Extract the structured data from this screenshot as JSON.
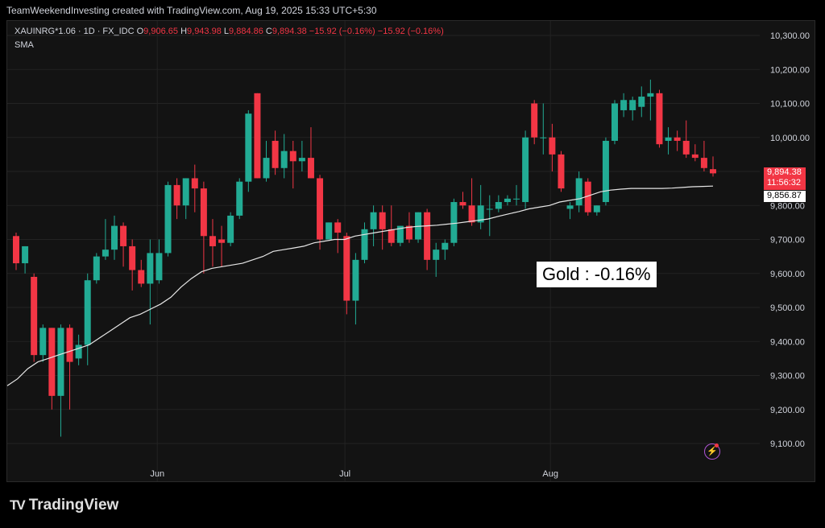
{
  "header": {
    "caption": "TeamWeekendInvesting created with TradingView.com, Aug 19, 2025 15:33 UTC+5:30"
  },
  "legend": {
    "symbol": "XAUINRG*1.06 · 1D · FX_IDC",
    "o_label": "O",
    "o_value": "9,906.65",
    "h_label": "H",
    "h_value": "9,943.98",
    "l_label": "L",
    "l_value": "9,884.86",
    "c_label": "C",
    "c_value": "9,894.38",
    "change": "−15.92 (−0.16%)",
    "change2": "−15.92 (−0.16%)",
    "indicator": "SMA"
  },
  "annotation": {
    "text": "Gold : -0.16%"
  },
  "price_tag": {
    "price": "9,894.38",
    "countdown": "11:56:32"
  },
  "sma_tag": {
    "value": "9,856.87"
  },
  "brand": {
    "logo": "TV",
    "name": "TradingView"
  },
  "colors": {
    "up": "#22ab94",
    "down": "#f23645",
    "sma": "#e6e6e6",
    "grid": "#232323",
    "bg": "#131313"
  },
  "icons": {
    "alert": "lightning-icon"
  },
  "chart_data": {
    "type": "candlestick",
    "title": "",
    "ylim": [
      9050,
      10330
    ],
    "y_ticks": [
      "10,300.00",
      "10,200.00",
      "10,100.00",
      "10,000.00",
      "9,900.00",
      "9,800.00",
      "9,700.00",
      "9,600.00",
      "9,500.00",
      "9,400.00",
      "9,300.00",
      "9,200.00",
      "9,100.00"
    ],
    "y_tick_values": [
      10300,
      10200,
      10100,
      10000,
      9900,
      9800,
      9700,
      9600,
      9500,
      9400,
      9300,
      9200,
      9100
    ],
    "x_ticks": [
      {
        "label": "Jun",
        "index": 16
      },
      {
        "label": "Jul",
        "index": 37
      },
      {
        "label": "Aug",
        "index": 60
      }
    ],
    "grid": true,
    "candles": [
      {
        "o": 9710,
        "h": 9720,
        "l": 9610,
        "c": 9630
      },
      {
        "o": 9630,
        "h": 9680,
        "l": 9600,
        "c": 9680
      },
      {
        "o": 9590,
        "h": 9600,
        "l": 9340,
        "c": 9360
      },
      {
        "o": 9360,
        "h": 9450,
        "l": 9340,
        "c": 9440
      },
      {
        "o": 9440,
        "h": 9440,
        "l": 9200,
        "c": 9240
      },
      {
        "o": 9240,
        "h": 9450,
        "l": 9120,
        "c": 9440
      },
      {
        "o": 9440,
        "h": 9450,
        "l": 9200,
        "c": 9340
      },
      {
        "o": 9350,
        "h": 9420,
        "l": 9330,
        "c": 9390
      },
      {
        "o": 9390,
        "h": 9600,
        "l": 9330,
        "c": 9580
      },
      {
        "o": 9580,
        "h": 9660,
        "l": 9570,
        "c": 9650
      },
      {
        "o": 9650,
        "h": 9760,
        "l": 9640,
        "c": 9670
      },
      {
        "o": 9670,
        "h": 9770,
        "l": 9640,
        "c": 9740
      },
      {
        "o": 9740,
        "h": 9750,
        "l": 9620,
        "c": 9680
      },
      {
        "o": 9680,
        "h": 9700,
        "l": 9550,
        "c": 9610
      },
      {
        "o": 9610,
        "h": 9640,
        "l": 9560,
        "c": 9570
      },
      {
        "o": 9570,
        "h": 9700,
        "l": 9450,
        "c": 9660
      },
      {
        "o": 9580,
        "h": 9700,
        "l": 9570,
        "c": 9660
      },
      {
        "o": 9660,
        "h": 9870,
        "l": 9650,
        "c": 9860
      },
      {
        "o": 9860,
        "h": 9880,
        "l": 9760,
        "c": 9800
      },
      {
        "o": 9800,
        "h": 9880,
        "l": 9760,
        "c": 9880
      },
      {
        "o": 9880,
        "h": 9920,
        "l": 9780,
        "c": 9850
      },
      {
        "o": 9850,
        "h": 9870,
        "l": 9600,
        "c": 9710
      },
      {
        "o": 9710,
        "h": 9760,
        "l": 9620,
        "c": 9680
      },
      {
        "o": 9700,
        "h": 9740,
        "l": 9620,
        "c": 9690
      },
      {
        "o": 9690,
        "h": 9780,
        "l": 9680,
        "c": 9770
      },
      {
        "o": 9770,
        "h": 9880,
        "l": 9760,
        "c": 9870
      },
      {
        "o": 9870,
        "h": 10080,
        "l": 9840,
        "c": 10070
      },
      {
        "o": 10130,
        "h": 10130,
        "l": 9880,
        "c": 9880
      },
      {
        "o": 9880,
        "h": 9990,
        "l": 9870,
        "c": 9940
      },
      {
        "o": 9990,
        "h": 10020,
        "l": 9890,
        "c": 9910
      },
      {
        "o": 9910,
        "h": 10010,
        "l": 9880,
        "c": 9960
      },
      {
        "o": 9960,
        "h": 9990,
        "l": 9850,
        "c": 9930
      },
      {
        "o": 9930,
        "h": 9990,
        "l": 9900,
        "c": 9940
      },
      {
        "o": 9940,
        "h": 10030,
        "l": 9880,
        "c": 9880
      },
      {
        "o": 9880,
        "h": 9890,
        "l": 9670,
        "c": 9700
      },
      {
        "o": 9700,
        "h": 9750,
        "l": 9700,
        "c": 9750
      },
      {
        "o": 9750,
        "h": 9760,
        "l": 9660,
        "c": 9720
      },
      {
        "o": 9710,
        "h": 9720,
        "l": 9480,
        "c": 9520
      },
      {
        "o": 9520,
        "h": 9660,
        "l": 9450,
        "c": 9640
      },
      {
        "o": 9640,
        "h": 9750,
        "l": 9630,
        "c": 9730
      },
      {
        "o": 9730,
        "h": 9800,
        "l": 9680,
        "c": 9780
      },
      {
        "o": 9780,
        "h": 9800,
        "l": 9670,
        "c": 9730
      },
      {
        "o": 9730,
        "h": 9800,
        "l": 9680,
        "c": 9690
      },
      {
        "o": 9690,
        "h": 9740,
        "l": 9680,
        "c": 9740
      },
      {
        "o": 9740,
        "h": 9780,
        "l": 9690,
        "c": 9700
      },
      {
        "o": 9700,
        "h": 9780,
        "l": 9690,
        "c": 9780
      },
      {
        "o": 9780,
        "h": 9790,
        "l": 9610,
        "c": 9640
      },
      {
        "o": 9640,
        "h": 9690,
        "l": 9590,
        "c": 9670
      },
      {
        "o": 9670,
        "h": 9700,
        "l": 9640,
        "c": 9690
      },
      {
        "o": 9690,
        "h": 9820,
        "l": 9680,
        "c": 9810
      },
      {
        "o": 9810,
        "h": 9840,
        "l": 9790,
        "c": 9800
      },
      {
        "o": 9800,
        "h": 9880,
        "l": 9740,
        "c": 9750
      },
      {
        "o": 9750,
        "h": 9860,
        "l": 9730,
        "c": 9800
      },
      {
        "o": 9790,
        "h": 9830,
        "l": 9710,
        "c": 9790
      },
      {
        "o": 9790,
        "h": 9830,
        "l": 9780,
        "c": 9810
      },
      {
        "o": 9810,
        "h": 9830,
        "l": 9800,
        "c": 9820
      },
      {
        "o": 9820,
        "h": 9860,
        "l": 9800,
        "c": 9820
      },
      {
        "o": 9810,
        "h": 10020,
        "l": 9790,
        "c": 10000
      },
      {
        "o": 10100,
        "h": 10110,
        "l": 9980,
        "c": 10000
      },
      {
        "o": 10000,
        "h": 10100,
        "l": 9950,
        "c": 10000
      },
      {
        "o": 10000,
        "h": 10040,
        "l": 9900,
        "c": 9950
      },
      {
        "o": 9950,
        "h": 9960,
        "l": 9840,
        "c": 9850
      },
      {
        "o": 9790,
        "h": 9810,
        "l": 9760,
        "c": 9800
      },
      {
        "o": 9800,
        "h": 9900,
        "l": 9780,
        "c": 9880
      },
      {
        "o": 9870,
        "h": 9880,
        "l": 9770,
        "c": 9780
      },
      {
        "o": 9780,
        "h": 9800,
        "l": 9770,
        "c": 9800
      },
      {
        "o": 9810,
        "h": 10000,
        "l": 9800,
        "c": 9990
      },
      {
        "o": 9990,
        "h": 10110,
        "l": 9980,
        "c": 10100
      },
      {
        "o": 10080,
        "h": 10130,
        "l": 10060,
        "c": 10110
      },
      {
        "o": 10080,
        "h": 10120,
        "l": 10050,
        "c": 10110
      },
      {
        "o": 10090,
        "h": 10150,
        "l": 10060,
        "c": 10120
      },
      {
        "o": 10120,
        "h": 10170,
        "l": 10050,
        "c": 10130
      },
      {
        "o": 10130,
        "h": 10140,
        "l": 9970,
        "c": 9980
      },
      {
        "o": 9990,
        "h": 10030,
        "l": 9950,
        "c": 10000
      },
      {
        "o": 10000,
        "h": 10020,
        "l": 9960,
        "c": 9990
      },
      {
        "o": 9990,
        "h": 10050,
        "l": 9940,
        "c": 9950
      },
      {
        "o": 9950,
        "h": 9980,
        "l": 9930,
        "c": 9940
      },
      {
        "o": 9940,
        "h": 9990,
        "l": 9900,
        "c": 9910
      },
      {
        "o": 9906.65,
        "h": 9943.98,
        "l": 9884.86,
        "c": 9894.38
      }
    ],
    "sma": [
      9270,
      9290,
      9320,
      9340,
      9350,
      9360,
      9370,
      9380,
      9390,
      9410,
      9430,
      9450,
      9470,
      9480,
      9495,
      9510,
      9530,
      9560,
      9585,
      9605,
      9615,
      9620,
      9625,
      9630,
      9640,
      9650,
      9665,
      9670,
      9675,
      9680,
      9690,
      9695,
      9700,
      9700,
      9710,
      9715,
      9720,
      9725,
      9730,
      9735,
      9738,
      9740,
      9742,
      9745,
      9748,
      9752,
      9756,
      9760,
      9768,
      9775,
      9782,
      9790,
      9795,
      9800,
      9810,
      9815,
      9820,
      9830,
      9840,
      9845,
      9848,
      9850,
      9850,
      9850,
      9850,
      9851,
      9853,
      9855,
      9856,
      9856.87
    ]
  }
}
